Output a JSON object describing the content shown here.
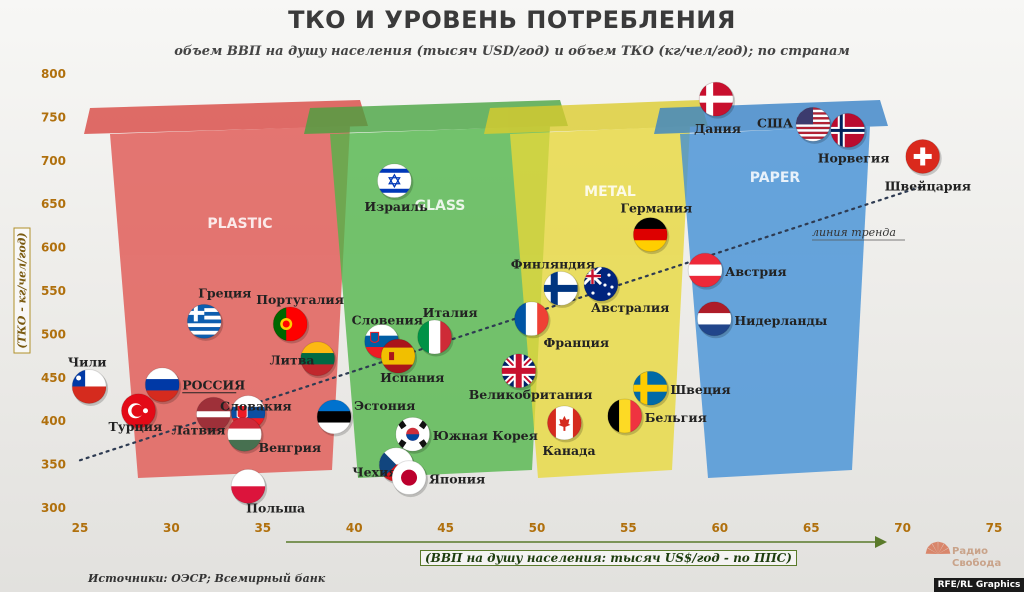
{
  "title": "ТКО И УРОВЕНЬ ПОТРЕБЛЕНИЯ",
  "subtitle": "объем ВВП на душу населения (тысяч USD/год) и объем ТКО (кг/чел/год); по странам",
  "source": "Источники: ОЭСР; Всемирный банк",
  "credit": "RFE/RL Graphics",
  "logo": "Радио Свобода",
  "bins": [
    "PLASTIC",
    "GLASS",
    "METAL",
    "PAPER"
  ],
  "colors": {
    "accent": "#b0700d",
    "axis_x": "#5a7a2a",
    "trend": "#2e3b52"
  },
  "chart_data": {
    "type": "scatter",
    "xlabel": "(ВВП на душу населения: тысяч US$/год - по ППС)",
    "ylabel": "(ТКО - кг/чел/год)",
    "xlim": [
      25,
      75
    ],
    "ylim": [
      300,
      800
    ],
    "xticks": [
      25,
      30,
      35,
      40,
      45,
      50,
      55,
      60,
      65,
      70,
      75
    ],
    "yticks": [
      300,
      350,
      400,
      450,
      500,
      550,
      600,
      650,
      700,
      750,
      800
    ],
    "trend": {
      "label": "линия тренда",
      "from": [
        25,
        355
      ],
      "to": [
        71,
        670
      ]
    },
    "points": [
      {
        "label": "Чили",
        "x": 25.5,
        "y": 440,
        "flag": "chile"
      },
      {
        "label": "Турция",
        "x": 28.2,
        "y": 412,
        "flag": "turkey"
      },
      {
        "label": "РОССИЯ",
        "x": 29.5,
        "y": 442,
        "flag": "russia"
      },
      {
        "label": "Греция",
        "x": 31.8,
        "y": 515,
        "flag": "greece"
      },
      {
        "label": "Латвия",
        "x": 32.3,
        "y": 408,
        "flag": "latvia"
      },
      {
        "label": "Словакия",
        "x": 34.2,
        "y": 410,
        "flag": "slovakia"
      },
      {
        "label": "Венгрия",
        "x": 34.0,
        "y": 385,
        "flag": "hungary"
      },
      {
        "label": "Польша",
        "x": 34.2,
        "y": 325,
        "flag": "poland"
      },
      {
        "label": "Португалия",
        "x": 36.5,
        "y": 512,
        "flag": "portugal"
      },
      {
        "label": "Литва",
        "x": 38.0,
        "y": 472,
        "flag": "lithuania"
      },
      {
        "label": "Эстония",
        "x": 38.9,
        "y": 405,
        "flag": "estonia"
      },
      {
        "label": "Израиль",
        "x": 42.2,
        "y": 677,
        "flag": "israel"
      },
      {
        "label": "Словения",
        "x": 41.5,
        "y": 492,
        "flag": "slovenia"
      },
      {
        "label": "Испания",
        "x": 42.4,
        "y": 475,
        "flag": "spain"
      },
      {
        "label": "Италия",
        "x": 44.4,
        "y": 497,
        "flag": "italy"
      },
      {
        "label": "Южная Корея",
        "x": 43.2,
        "y": 385,
        "flag": "korea"
      },
      {
        "label": "Чехия",
        "x": 42.3,
        "y": 350,
        "flag": "czech"
      },
      {
        "label": "Япония",
        "x": 43.0,
        "y": 335,
        "flag": "japan"
      },
      {
        "label": "Великобритания",
        "x": 49.0,
        "y": 458,
        "flag": "uk"
      },
      {
        "label": "Франция",
        "x": 49.7,
        "y": 518,
        "flag": "france"
      },
      {
        "label": "Финляндия",
        "x": 51.3,
        "y": 553,
        "flag": "finland"
      },
      {
        "label": "Австралия",
        "x": 53.5,
        "y": 558,
        "flag": "australia"
      },
      {
        "label": "Канада",
        "x": 51.5,
        "y": 398,
        "flag": "canada"
      },
      {
        "label": "Германия",
        "x": 56.2,
        "y": 615,
        "flag": "germany"
      },
      {
        "label": "Швеция",
        "x": 56.2,
        "y": 438,
        "flag": "sweden"
      },
      {
        "label": "Бельгия",
        "x": 54.8,
        "y": 406,
        "flag": "belgium"
      },
      {
        "label": "Австрия",
        "x": 59.2,
        "y": 574,
        "flag": "austria"
      },
      {
        "label": "Нидерланды",
        "x": 59.7,
        "y": 518,
        "flag": "netherlands"
      },
      {
        "label": "Дания",
        "x": 59.8,
        "y": 771,
        "flag": "denmark"
      },
      {
        "label": "США",
        "x": 65.1,
        "y": 742,
        "flag": "usa"
      },
      {
        "label": "Норвегия",
        "x": 67.0,
        "y": 735,
        "flag": "norway"
      },
      {
        "label": "Швейцария",
        "x": 71.1,
        "y": 705,
        "flag": "switzerland"
      }
    ]
  }
}
